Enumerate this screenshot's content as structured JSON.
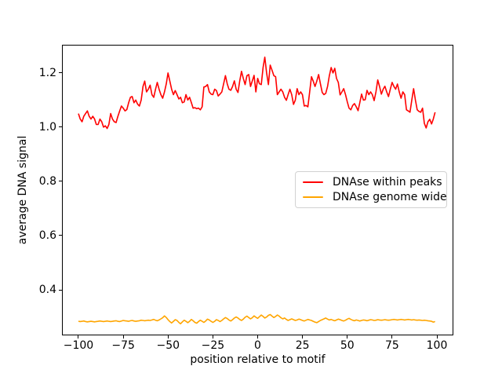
{
  "figure": {
    "background": "#ffffff",
    "title": ""
  },
  "chart_data": {
    "type": "line",
    "title": "",
    "xlabel": "position relative to motif",
    "ylabel": "average DNA signal",
    "xlim": [
      -108.75,
      108.75
    ],
    "ylim": [
      0.235,
      1.301
    ],
    "grid": false,
    "legend_position": "center right",
    "xticks": {
      "values": [
        -100,
        -75,
        -50,
        -25,
        0,
        25,
        50,
        75,
        100
      ],
      "labels": [
        "−100",
        "−75",
        "−50",
        "−25",
        "0",
        "25",
        "50",
        "75",
        "100"
      ]
    },
    "yticks": {
      "values": [
        0.4,
        0.6,
        0.8,
        1.0,
        1.2
      ],
      "labels": [
        "0.4",
        "0.6",
        "0.8",
        "1.0",
        "1.2"
      ]
    },
    "x": [
      -100,
      -99,
      -98,
      -97,
      -96,
      -95,
      -94,
      -93,
      -92,
      -91,
      -90,
      -89,
      -88,
      -87,
      -86,
      -85,
      -84,
      -83,
      -82,
      -81,
      -80,
      -79,
      -78,
      -77,
      -76,
      -75,
      -74,
      -73,
      -72,
      -71,
      -70,
      -69,
      -68,
      -67,
      -66,
      -65,
      -64,
      -63,
      -62,
      -61,
      -60,
      -59,
      -58,
      -57,
      -56,
      -55,
      -54,
      -53,
      -52,
      -51,
      -50,
      -49,
      -48,
      -47,
      -46,
      -45,
      -44,
      -43,
      -42,
      -41,
      -40,
      -39,
      -38,
      -37,
      -36,
      -35,
      -34,
      -33,
      -32,
      -31,
      -30,
      -29,
      -28,
      -27,
      -26,
      -25,
      -24,
      -23,
      -22,
      -21,
      -20,
      -19,
      -18,
      -17,
      -16,
      -15,
      -14,
      -13,
      -12,
      -11,
      -10,
      -9,
      -8,
      -7,
      -6,
      -5,
      -4,
      -3,
      -2,
      -1,
      0,
      1,
      2,
      3,
      4,
      5,
      6,
      7,
      8,
      9,
      10,
      11,
      12,
      13,
      14,
      15,
      16,
      17,
      18,
      19,
      20,
      21,
      22,
      23,
      24,
      25,
      26,
      27,
      28,
      29,
      30,
      31,
      32,
      33,
      34,
      35,
      36,
      37,
      38,
      39,
      40,
      41,
      42,
      43,
      44,
      45,
      46,
      47,
      48,
      49,
      50,
      51,
      52,
      53,
      54,
      55,
      56,
      57,
      58,
      59,
      60,
      61,
      62,
      63,
      64,
      65,
      66,
      67,
      68,
      69,
      70,
      71,
      72,
      73,
      74,
      75,
      76,
      77,
      78,
      79,
      80,
      81,
      82,
      83,
      84,
      85,
      86,
      87,
      88,
      89,
      90,
      91,
      92,
      93,
      94,
      95,
      96,
      97,
      98,
      99
    ],
    "series": [
      {
        "name": "DNAse within peaks",
        "color": "#ff0000",
        "values": [
          1.05,
          1.03,
          1.02,
          1.04,
          1.05,
          1.06,
          1.04,
          1.03,
          1.04,
          1.03,
          1.01,
          1.01,
          1.03,
          1.02,
          1.0,
          1.005,
          0.995,
          1.01,
          1.05,
          1.03,
          1.02,
          1.017,
          1.04,
          1.06,
          1.078,
          1.07,
          1.06,
          1.065,
          1.09,
          1.11,
          1.113,
          1.09,
          1.1,
          1.085,
          1.078,
          1.1,
          1.15,
          1.17,
          1.13,
          1.14,
          1.155,
          1.12,
          1.11,
          1.14,
          1.165,
          1.14,
          1.12,
          1.107,
          1.13,
          1.16,
          1.2,
          1.17,
          1.14,
          1.12,
          1.135,
          1.12,
          1.104,
          1.11,
          1.09,
          1.093,
          1.12,
          1.1,
          1.11,
          1.09,
          1.07,
          1.072,
          1.068,
          1.07,
          1.064,
          1.075,
          1.148,
          1.15,
          1.157,
          1.13,
          1.122,
          1.12,
          1.14,
          1.135,
          1.115,
          1.122,
          1.13,
          1.16,
          1.19,
          1.16,
          1.14,
          1.136,
          1.15,
          1.171,
          1.14,
          1.128,
          1.17,
          1.206,
          1.18,
          1.157,
          1.19,
          1.194,
          1.15,
          1.17,
          1.191,
          1.13,
          1.18,
          1.16,
          1.157,
          1.22,
          1.258,
          1.2,
          1.157,
          1.229,
          1.21,
          1.19,
          1.186,
          1.12,
          1.13,
          1.14,
          1.13,
          1.11,
          1.099,
          1.12,
          1.14,
          1.12,
          1.084,
          1.1,
          1.142,
          1.12,
          1.13,
          1.12,
          1.078,
          1.08,
          1.075,
          1.13,
          1.186,
          1.17,
          1.15,
          1.17,
          1.194,
          1.16,
          1.128,
          1.12,
          1.125,
          1.15,
          1.19,
          1.22,
          1.2,
          1.217,
          1.18,
          1.165,
          1.119,
          1.13,
          1.142,
          1.12,
          1.093,
          1.07,
          1.064,
          1.08,
          1.087,
          1.075,
          1.061,
          1.09,
          1.122,
          1.1,
          1.101,
          1.136,
          1.12,
          1.13,
          1.12,
          1.098,
          1.13,
          1.174,
          1.15,
          1.122,
          1.14,
          1.151,
          1.13,
          1.113,
          1.14,
          1.165,
          1.15,
          1.14,
          1.159,
          1.13,
          1.107,
          1.13,
          1.12,
          1.064,
          1.06,
          1.055,
          1.1,
          1.142,
          1.1,
          1.064,
          1.058,
          1.055,
          1.07,
          1.014,
          0.997,
          1.02,
          1.029,
          1.012,
          1.03,
          1.055
        ]
      },
      {
        "name": "DNAse genome wide",
        "color": "#ffa500",
        "values": [
          0.284,
          0.283,
          0.284,
          0.285,
          0.283,
          0.282,
          0.283,
          0.284,
          0.283,
          0.282,
          0.283,
          0.284,
          0.285,
          0.284,
          0.283,
          0.284,
          0.285,
          0.284,
          0.283,
          0.284,
          0.285,
          0.286,
          0.284,
          0.283,
          0.285,
          0.287,
          0.286,
          0.285,
          0.284,
          0.286,
          0.287,
          0.285,
          0.284,
          0.285,
          0.286,
          0.288,
          0.287,
          0.286,
          0.287,
          0.288,
          0.287,
          0.289,
          0.291,
          0.288,
          0.286,
          0.289,
          0.293,
          0.297,
          0.304,
          0.298,
          0.29,
          0.283,
          0.278,
          0.284,
          0.29,
          0.287,
          0.28,
          0.275,
          0.282,
          0.288,
          0.284,
          0.279,
          0.284,
          0.291,
          0.286,
          0.28,
          0.277,
          0.283,
          0.288,
          0.284,
          0.28,
          0.285,
          0.292,
          0.289,
          0.284,
          0.28,
          0.284,
          0.29,
          0.287,
          0.283,
          0.287,
          0.293,
          0.298,
          0.294,
          0.289,
          0.285,
          0.29,
          0.296,
          0.3,
          0.296,
          0.291,
          0.287,
          0.292,
          0.299,
          0.303,
          0.298,
          0.293,
          0.297,
          0.304,
          0.299,
          0.295,
          0.301,
          0.307,
          0.302,
          0.296,
          0.3,
          0.306,
          0.309,
          0.303,
          0.298,
          0.302,
          0.307,
          0.303,
          0.297,
          0.293,
          0.296,
          0.291,
          0.287,
          0.29,
          0.293,
          0.29,
          0.287,
          0.289,
          0.292,
          0.29,
          0.287,
          0.285,
          0.288,
          0.291,
          0.289,
          0.287,
          0.284,
          0.281,
          0.279,
          0.283,
          0.287,
          0.29,
          0.293,
          0.296,
          0.292,
          0.289,
          0.291,
          0.288,
          0.286,
          0.289,
          0.292,
          0.29,
          0.287,
          0.285,
          0.288,
          0.292,
          0.295,
          0.291,
          0.288,
          0.286,
          0.289,
          0.287,
          0.285,
          0.287,
          0.289,
          0.288,
          0.286,
          0.288,
          0.29,
          0.289,
          0.287,
          0.288,
          0.29,
          0.289,
          0.288,
          0.289,
          0.29,
          0.289,
          0.288,
          0.289,
          0.29,
          0.291,
          0.29,
          0.289,
          0.29,
          0.291,
          0.29,
          0.289,
          0.29,
          0.291,
          0.29,
          0.289,
          0.29,
          0.289,
          0.288,
          0.289,
          0.288,
          0.287,
          0.288,
          0.287,
          0.286,
          0.285,
          0.284,
          0.281,
          0.283
        ]
      }
    ]
  }
}
